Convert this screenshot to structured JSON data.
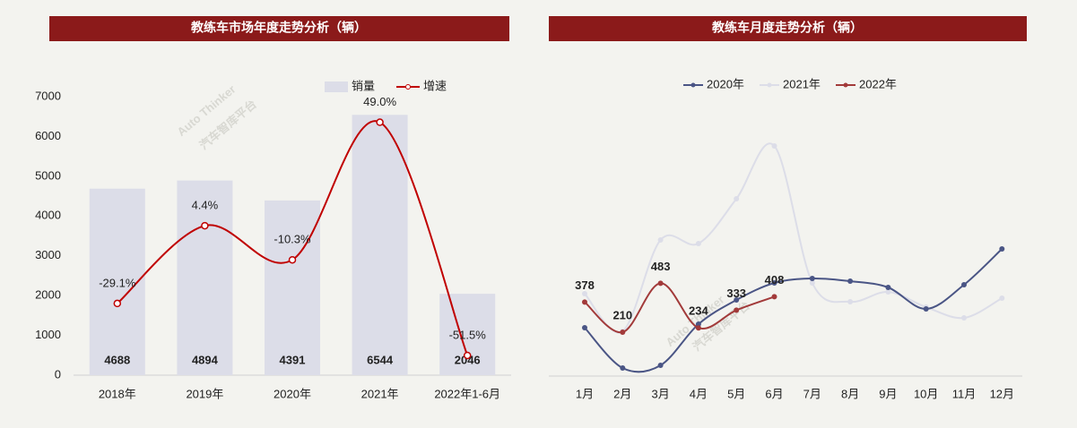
{
  "watermark": {
    "brand": "Auto Thinker",
    "platform": "汽车智库平台"
  },
  "chart_data": [
    {
      "type": "bar",
      "title": "教练车市场年度走势分析（辆）",
      "categories": [
        "2018年",
        "2019年",
        "2020年",
        "2021年",
        "2022年1-6月"
      ],
      "series": [
        {
          "name": "销量",
          "type": "bar",
          "color": "#dcdde8",
          "values": [
            4688,
            4894,
            4391,
            6544,
            2046
          ]
        },
        {
          "name": "增速",
          "type": "line",
          "axis": "y2",
          "color": "#c00000",
          "values": [
            -29.1,
            4.4,
            -10.3,
            49.0,
            -51.5
          ],
          "value_labels": [
            "-29.1%",
            "4.4%",
            "-10.3%",
            "49.0%",
            "-51.5%"
          ]
        }
      ],
      "ylim": [
        0,
        7000
      ],
      "yticks": [
        0,
        1000,
        2000,
        3000,
        4000,
        5000,
        6000,
        7000
      ],
      "y2lim": [
        -60,
        60
      ]
    },
    {
      "type": "line",
      "title": "教练车月度走势分析（辆）",
      "categories": [
        "1月",
        "2月",
        "3月",
        "4月",
        "5月",
        "6月",
        "7月",
        "8月",
        "9月",
        "10月",
        "11月",
        "12月"
      ],
      "series": [
        {
          "name": "2020年",
          "color": "#4a5585",
          "values": [
            235,
            10,
            25,
            255,
            390,
            485,
            510,
            495,
            460,
            340,
            475,
            675
          ]
        },
        {
          "name": "2021年",
          "color": "#dcdde8",
          "values": [
            425,
            215,
            725,
            705,
            955,
            1250,
            485,
            380,
            435,
            350,
            290,
            400
          ]
        },
        {
          "name": "2022年",
          "color": "#a23a3a",
          "show_labels": true,
          "values": [
            378,
            210,
            483,
            234,
            333,
            408,
            null,
            null,
            null,
            null,
            null,
            null
          ]
        }
      ],
      "ylim": [
        0,
        1800
      ]
    }
  ]
}
